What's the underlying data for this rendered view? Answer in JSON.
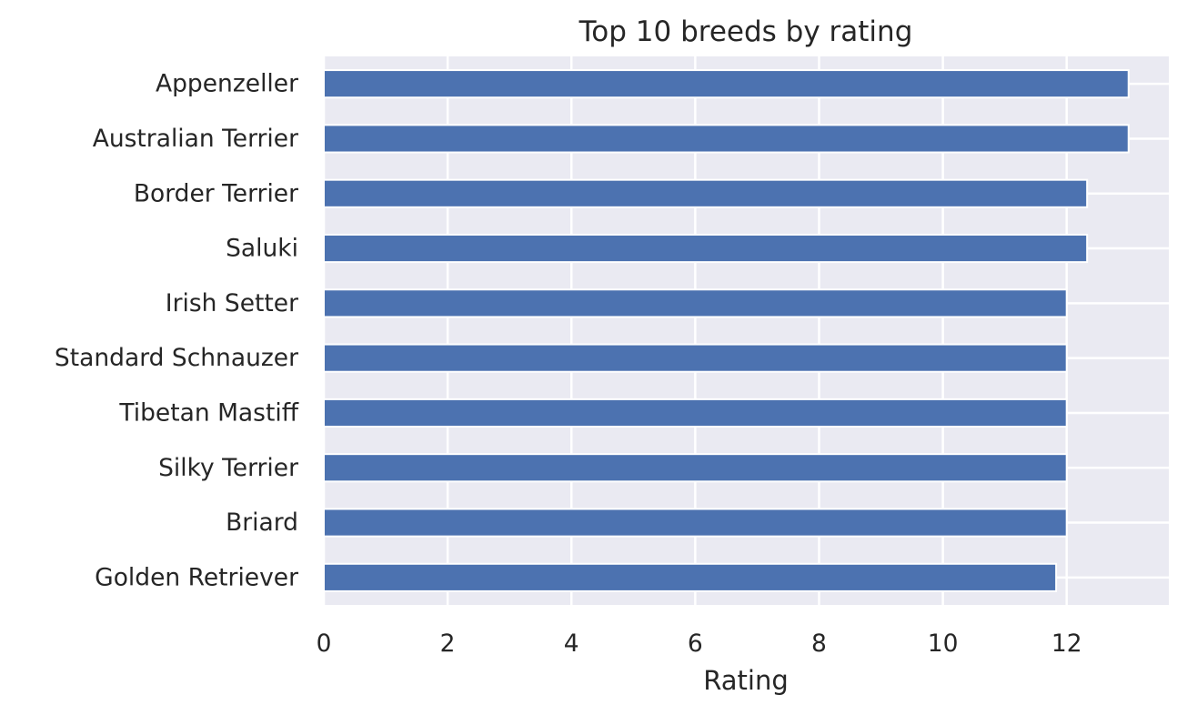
{
  "chart_data": {
    "type": "bar",
    "orientation": "horizontal",
    "title": "Top 10 breeds by rating",
    "xlabel": "Rating",
    "ylabel": "",
    "categories": [
      "Appenzeller",
      "Australian Terrier",
      "Border Terrier",
      "Saluki",
      "Irish Setter",
      "Standard Schnauzer",
      "Tibetan Mastiff",
      "Silky Terrier",
      "Briard",
      "Golden Retriever"
    ],
    "values": [
      13.0,
      13.0,
      12.33,
      12.33,
      12.0,
      12.0,
      12.0,
      12.0,
      12.0,
      11.83
    ],
    "xticks": [
      "0",
      "2",
      "4",
      "6",
      "8",
      "10",
      "12"
    ],
    "xlim": [
      0,
      13.65
    ],
    "grid": true,
    "bar_color": "#4c72b0",
    "background_color": "#eaeaf2",
    "grid_color": "#ffffff"
  }
}
